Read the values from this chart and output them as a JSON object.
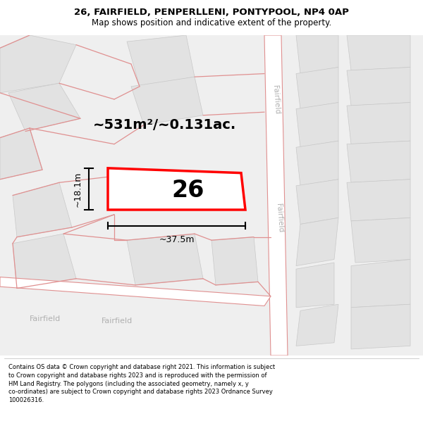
{
  "title": "26, FAIRFIELD, PENPERLLENI, PONTYPOOL, NP4 0AP",
  "subtitle": "Map shows position and indicative extent of the property.",
  "footer": "Contains OS data © Crown copyright and database right 2021. This information is subject to Crown copyright and database rights 2023 and is reproduced with the permission of HM Land Registry. The polygons (including the associated geometry, namely x, y co-ordinates) are subject to Crown copyright and database rights 2023 Ordnance Survey 100026316.",
  "area_text": "~531m²/~0.131ac.",
  "property_number": "26",
  "dim_width": "~37.5m",
  "dim_height": "~18.1m",
  "title_fontsize": 9.5,
  "subtitle_fontsize": 8.5,
  "footer_fontsize": 6.0,
  "bg_color": "#f5f5f5",
  "map_bg": "#f0f0f0",
  "building_fill": "#e2e2e2",
  "building_edge": "#c8c8c8",
  "road_fill": "#ffffff",
  "road_line_color": "#e09090",
  "property_edge": "#ff0000",
  "property_fill": "#ffffff",
  "road_label_color": "#b0b0b0",
  "dim_line_color": "#000000",
  "area_fontsize": 14,
  "number_fontsize": 24
}
